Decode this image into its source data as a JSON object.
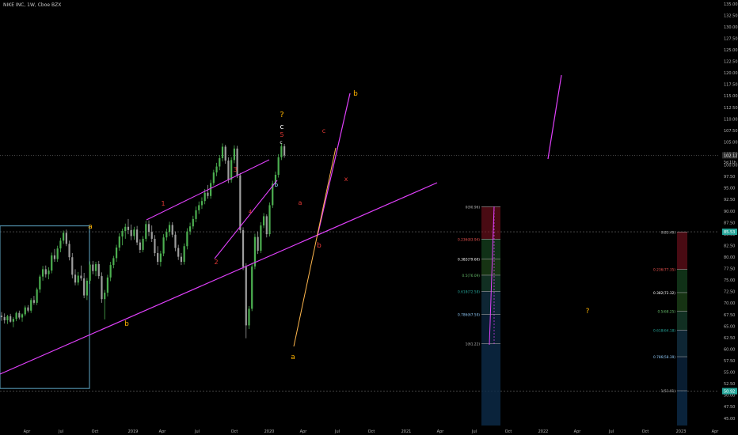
{
  "header": {
    "symbol_info": "NIKE INC, 1W, Cboe BZX"
  },
  "colors": {
    "background": "#000000",
    "up_candle": "#4caf50",
    "down_candle": "#9e9e9e",
    "trendline": "#e040fb",
    "orange_line": "#ffb74d",
    "box": "#5fa8c8",
    "wave_orange": "#ffb300",
    "wave_red": "#e53935",
    "wave_white": "#ffffff",
    "wave_blue": "#90caf9",
    "price_label_bg": "#2f2f2f",
    "price_label_teal": "#26a69a"
  },
  "price_axis": {
    "ticks": [
      "135.00",
      "132.50",
      "130.00",
      "127.50",
      "125.00",
      "122.50",
      "120.00",
      "117.50",
      "115.00",
      "112.50",
      "110.00",
      "107.50",
      "105.00",
      "102.50",
      "100.00",
      "97.50",
      "95.00",
      "92.50",
      "90.00",
      "87.50",
      "85.00",
      "82.50",
      "80.00",
      "77.50",
      "75.00",
      "72.50",
      "70.00",
      "67.50",
      "65.00",
      "62.50",
      "60.00",
      "57.50",
      "55.00",
      "52.50",
      "50.00",
      "47.50",
      "45.00"
    ],
    "current_price": "102.12",
    "countdown": "5d 11h",
    "level_a": "85.53",
    "level_b": "50.92"
  },
  "time_axis": {
    "labels": [
      "Apr",
      "Jul",
      "Oct",
      "2019",
      "Apr",
      "Jul",
      "Oct",
      "2020",
      "Apr",
      "Jul",
      "Oct",
      "2021",
      "Apr",
      "Jul",
      "Oct",
      "2022",
      "Apr",
      "Jul",
      "Oct",
      "2023",
      "Apr"
    ]
  },
  "chart_data": {
    "type": "candlestick",
    "symbol": "NIKE INC",
    "interval": "1W",
    "exchange": "Cboe BZX",
    "ylim": [
      44.5,
      136
    ],
    "grid": false,
    "candles": [
      [
        67.3,
        68.1,
        66.2,
        67.0
      ],
      [
        67.0,
        67.8,
        65.6,
        66.3
      ],
      [
        66.3,
        67.5,
        65.5,
        67.2
      ],
      [
        67.2,
        67.7,
        65.8,
        66.0
      ],
      [
        66.0,
        67.0,
        64.8,
        66.6
      ],
      [
        66.6,
        68.2,
        66.1,
        67.9
      ],
      [
        67.9,
        68.4,
        66.5,
        66.9
      ],
      [
        66.9,
        67.8,
        66.0,
        67.6
      ],
      [
        67.6,
        69.5,
        67.2,
        69.1
      ],
      [
        69.1,
        69.6,
        68.0,
        68.4
      ],
      [
        68.4,
        71.1,
        67.9,
        70.7
      ],
      [
        70.7,
        71.6,
        69.7,
        70.1
      ],
      [
        70.1,
        73.4,
        69.6,
        73.0
      ],
      [
        73.0,
        76.2,
        72.3,
        75.8
      ],
      [
        75.8,
        78.1,
        74.9,
        77.4
      ],
      [
        77.4,
        78.2,
        75.6,
        76.3
      ],
      [
        76.3,
        77.8,
        75.2,
        77.1
      ],
      [
        77.1,
        81.0,
        76.5,
        80.4
      ],
      [
        80.4,
        81.8,
        79.0,
        79.6
      ],
      [
        79.6,
        82.5,
        79.0,
        81.9
      ],
      [
        81.9,
        84.2,
        81.1,
        83.6
      ],
      [
        83.6,
        85.8,
        82.9,
        85.3
      ],
      [
        85.3,
        86.0,
        82.4,
        82.9
      ],
      [
        82.9,
        83.6,
        79.3,
        80.0
      ],
      [
        80.0,
        80.9,
        75.4,
        76.2
      ],
      [
        76.2,
        77.4,
        73.9,
        74.5
      ],
      [
        74.5,
        76.8,
        73.9,
        76.0
      ],
      [
        76.0,
        78.2,
        74.9,
        75.4
      ],
      [
        75.4,
        76.6,
        71.1,
        71.7
      ],
      [
        71.7,
        75.5,
        70.7,
        74.9
      ],
      [
        74.9,
        79.1,
        74.2,
        78.4
      ],
      [
        78.4,
        79.2,
        76.3,
        77.0
      ],
      [
        77.0,
        79.0,
        75.9,
        78.5
      ],
      [
        78.5,
        79.2,
        75.3,
        75.9
      ],
      [
        75.9,
        76.7,
        70.1,
        70.9
      ],
      [
        70.9,
        72.9,
        66.5,
        72.3
      ],
      [
        72.3,
        76.2,
        71.5,
        75.6
      ],
      [
        75.6,
        79.0,
        74.8,
        78.3
      ],
      [
        78.3,
        80.3,
        77.6,
        79.8
      ],
      [
        79.8,
        82.7,
        79.0,
        82.1
      ],
      [
        82.1,
        85.2,
        81.4,
        84.5
      ],
      [
        84.5,
        86.2,
        82.6,
        85.7
      ],
      [
        85.7,
        87.3,
        84.0,
        86.6
      ],
      [
        86.6,
        88.3,
        85.0,
        85.9
      ],
      [
        85.9,
        87.1,
        83.7,
        84.6
      ],
      [
        84.6,
        86.6,
        83.8,
        86.0
      ],
      [
        86.0,
        86.8,
        82.6,
        83.2
      ],
      [
        83.2,
        83.9,
        80.9,
        81.6
      ],
      [
        81.6,
        84.6,
        81.1,
        84.0
      ],
      [
        84.0,
        87.9,
        83.4,
        87.2
      ],
      [
        87.2,
        88.0,
        84.6,
        85.5
      ],
      [
        85.5,
        86.9,
        83.3,
        84.0
      ],
      [
        84.0,
        84.8,
        80.2,
        80.9
      ],
      [
        80.9,
        82.4,
        78.3,
        79.0
      ],
      [
        79.0,
        81.4,
        78.0,
        80.8
      ],
      [
        80.8,
        85.0,
        80.2,
        84.3
      ],
      [
        84.3,
        86.2,
        83.6,
        85.5
      ],
      [
        85.5,
        87.7,
        84.6,
        87.0
      ],
      [
        87.0,
        87.6,
        84.3,
        84.9
      ],
      [
        84.9,
        85.6,
        81.3,
        82.0
      ],
      [
        82.0,
        82.7,
        79.4,
        80.1
      ],
      [
        80.1,
        80.9,
        78.3,
        79.0
      ],
      [
        79.0,
        83.0,
        78.4,
        82.4
      ],
      [
        82.4,
        86.3,
        81.7,
        85.6
      ],
      [
        85.6,
        87.5,
        84.9,
        86.7
      ],
      [
        86.7,
        89.0,
        86.1,
        88.3
      ],
      [
        88.3,
        91.0,
        87.6,
        90.2
      ],
      [
        90.2,
        92.1,
        89.4,
        91.3
      ],
      [
        91.3,
        93.0,
        90.5,
        92.2
      ],
      [
        92.2,
        94.8,
        91.5,
        94.0
      ],
      [
        94.0,
        95.7,
        92.7,
        93.3
      ],
      [
        93.3,
        96.8,
        92.7,
        96.1
      ],
      [
        96.1,
        99.0,
        95.6,
        98.4
      ],
      [
        98.4,
        100.5,
        97.6,
        99.7
      ],
      [
        99.7,
        102.2,
        98.9,
        101.5
      ],
      [
        101.5,
        104.7,
        100.8,
        104.0
      ],
      [
        104.0,
        104.4,
        100.3,
        101.0
      ],
      [
        101.0,
        101.7,
        96.1,
        96.8
      ],
      [
        96.8,
        101.7,
        96.2,
        101.1
      ],
      [
        101.1,
        104.3,
        100.4,
        103.6
      ],
      [
        103.6,
        104.2,
        97.2,
        97.8
      ],
      [
        97.8,
        98.3,
        85.2,
        85.9
      ],
      [
        85.9,
        86.5,
        77.2,
        77.9
      ],
      [
        77.9,
        78.7,
        62.4,
        65.2
      ],
      [
        65.2,
        69.4,
        64.4,
        68.8
      ],
      [
        68.8,
        78.8,
        68.3,
        78.0
      ],
      [
        78.0,
        85.1,
        77.4,
        84.4
      ],
      [
        84.4,
        85.6,
        80.7,
        81.4
      ],
      [
        81.4,
        87.6,
        80.9,
        86.9
      ],
      [
        86.9,
        89.6,
        86.3,
        88.9
      ],
      [
        88.9,
        89.3,
        84.3,
        85.0
      ],
      [
        85.0,
        91.9,
        84.5,
        91.3
      ],
      [
        91.3,
        96.6,
        90.7,
        96.0
      ],
      [
        96.0,
        98.6,
        95.3,
        97.9
      ],
      [
        97.9,
        102.4,
        97.3,
        101.7
      ],
      [
        101.7,
        104.8,
        101.1,
        104.1
      ],
      [
        104.1,
        104.6,
        101.6,
        102.1
      ]
    ],
    "support_lines": [
      {
        "value": 102.12
      },
      {
        "value": 85.53
      },
      {
        "value": 50.92
      }
    ],
    "wave_labels": {
      "major": [
        "a",
        "b",
        "?",
        "c",
        "a",
        "b",
        "b"
      ],
      "minor": [
        "1",
        "2",
        "3",
        "4",
        "5",
        "c",
        "a",
        "b",
        "c",
        "x",
        "?"
      ]
    },
    "fib_retracement_1": {
      "levels": [
        {
          "text": "0(90.96)",
          "value": 90.96
        },
        {
          "text": "0.236(83.94)",
          "value": 83.94
        },
        {
          "text": "0.382(79.60)",
          "value": 79.6
        },
        {
          "text": "0.5(76.09)",
          "value": 76.09
        },
        {
          "text": "0.618(72.58)",
          "value": 72.58
        },
        {
          "text": "0.786(67.59)",
          "value": 67.59
        },
        {
          "text": "1(61.22)",
          "value": 61.22
        }
      ]
    },
    "fib_retracement_2": {
      "levels": [
        {
          "text": "0(85.49)",
          "value": 85.49
        },
        {
          "text": "0.236(77.35)",
          "value": 77.35
        },
        {
          "text": "0.382(72.32)",
          "value": 72.32
        },
        {
          "text": "0.5(68.25)",
          "value": 68.25
        },
        {
          "text": "0.618(64.18)",
          "value": 64.18
        },
        {
          "text": "0.786(58.39)",
          "value": 58.39
        },
        {
          "text": "1(51.01)",
          "value": 51.01
        }
      ]
    }
  }
}
